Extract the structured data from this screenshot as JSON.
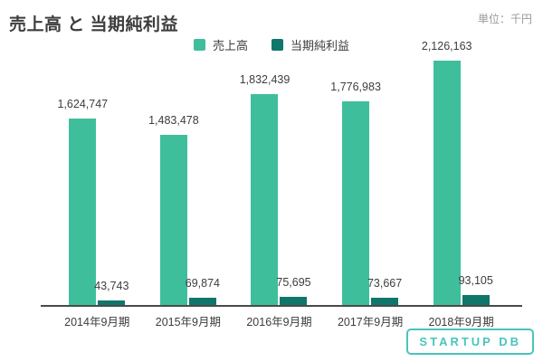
{
  "header": {
    "title": "売上高 と 当期純利益",
    "unit_label": "単位：千円"
  },
  "colors": {
    "revenue": "#3fbe9c",
    "net_income": "#0e766b",
    "text": "#3d3d3d",
    "muted_text": "#9b9b9b",
    "axis": "#4a4a4a",
    "logo": "#4ac4bc"
  },
  "chart_data": {
    "type": "bar",
    "title": "売上高 と 当期純利益",
    "unit": "千円",
    "categories": [
      "2014年9月期",
      "2015年9月期",
      "2016年9月期",
      "2017年9月期",
      "2018年9月期"
    ],
    "series": [
      {
        "name": "売上高",
        "color": "#3fbe9c",
        "values": [
          1624747,
          1483478,
          1832439,
          1776983,
          2126163
        ],
        "labels": [
          "1,624,747",
          "1,483,478",
          "1,832,439",
          "1,776,983",
          "2,126,163"
        ]
      },
      {
        "name": "当期純利益",
        "color": "#0e766b",
        "values": [
          43743,
          69874,
          75695,
          73667,
          93105
        ],
        "labels": [
          "43,743",
          "69,874",
          "75,695",
          "73,667",
          "93,105"
        ]
      }
    ],
    "ylim": [
      0,
      2126163
    ],
    "grid": false,
    "legend_position": "top",
    "value_labels": true,
    "y_axis_visible": false
  },
  "footer": {
    "logo_text": "STARTUP DB"
  }
}
